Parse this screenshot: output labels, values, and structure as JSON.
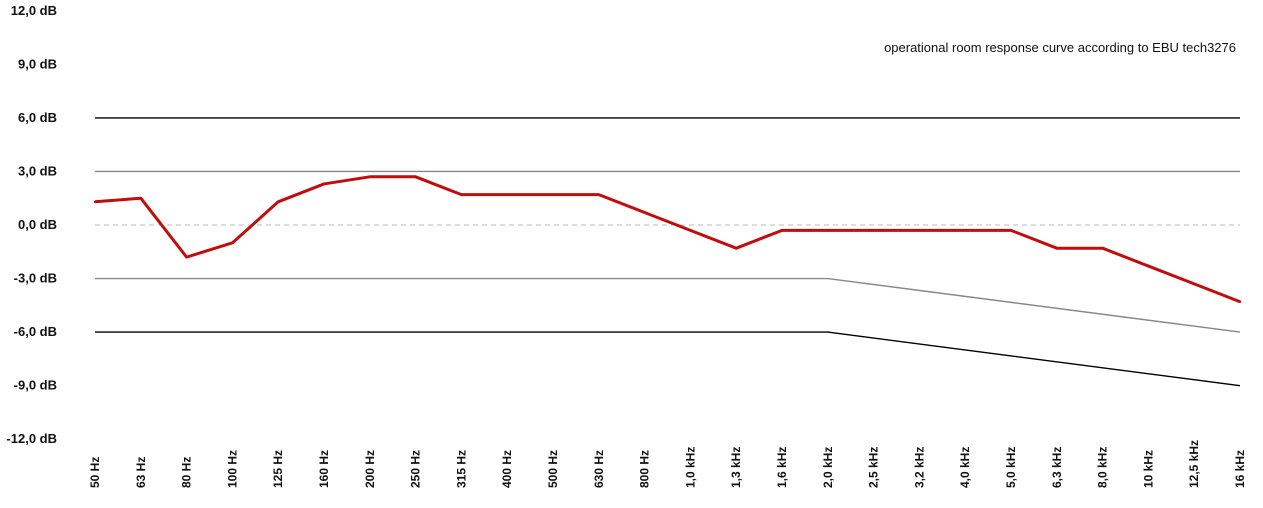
{
  "chart_data": {
    "type": "line",
    "annotation": "operational room response curve according to EBU tech3276",
    "categories": [
      "50 Hz",
      "63 Hz",
      "80 Hz",
      "100 Hz",
      "125 Hz",
      "160 Hz",
      "200 Hz",
      "250 Hz",
      "315 Hz",
      "400 Hz",
      "500 Hz",
      "630 Hz",
      "800 Hz",
      "1,0 kHz",
      "1,3 kHz",
      "1,6 kHz",
      "2,0 kHz",
      "2,5 kHz",
      "3,2 kHz",
      "4,0 kHz",
      "5,0 kHz",
      "6,3 kHz",
      "8,0 kHz",
      "10 kHz",
      "12,5 kHz",
      "16 kHz"
    ],
    "y_ticks": [
      "12,0 dB",
      "9,0 dB",
      "6,0 dB",
      "3,0 dB",
      "0,0 dB",
      "-3,0 dB",
      "-6,0 dB",
      "-9,0 dB",
      "-12,0 dB"
    ],
    "ylim": [
      -12,
      12
    ],
    "series": [
      {
        "values": [
          1.3,
          1.5,
          -1.8,
          -1.0,
          1.3,
          2.3,
          2.7,
          2.7,
          1.7,
          1.7,
          1.7,
          1.7,
          0.7,
          -0.3,
          -1.3,
          -0.3,
          -0.3,
          -0.3,
          -0.3,
          -0.3,
          -0.3,
          -1.3,
          -1.3,
          -2.3,
          -3.3,
          -4.3
        ]
      }
    ],
    "tolerance_lines": [
      {
        "role": "outer-upper",
        "color": "#000000",
        "points": [
          [
            0,
            6
          ],
          [
            25,
            6
          ]
        ]
      },
      {
        "role": "inner-upper",
        "color": "#888888",
        "points": [
          [
            0,
            3
          ],
          [
            25,
            3
          ]
        ]
      },
      {
        "role": "reference",
        "color": "#bbbbbb",
        "points": [
          [
            0,
            0
          ],
          [
            25,
            0
          ]
        ]
      },
      {
        "role": "inner-lower",
        "color": "#888888",
        "points": [
          [
            0,
            -3
          ],
          [
            16,
            -3
          ],
          [
            25,
            -6
          ]
        ]
      },
      {
        "role": "outer-lower",
        "color": "#000000",
        "points": [
          [
            0,
            -6
          ],
          [
            16,
            -6
          ],
          [
            25,
            -9
          ]
        ]
      }
    ],
    "series_color": "#c00d0d",
    "grid": false,
    "legend": "none"
  }
}
